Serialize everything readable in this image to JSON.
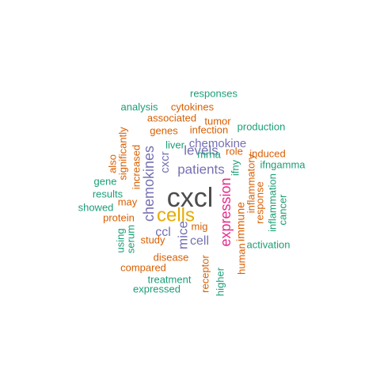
{
  "palette": {
    "dark_gray": "#4d4d4d",
    "magenta": "#e7298a",
    "gold": "#e6ab02",
    "purple": "#7570b3",
    "orange": "#d95f02",
    "teal": "#1b9e77"
  },
  "words": [
    {
      "text": "cxcl",
      "color": "dark_gray"
    },
    {
      "text": "expression",
      "color": "magenta"
    },
    {
      "text": "cells",
      "color": "gold"
    },
    {
      "text": "chemokines",
      "color": "purple"
    },
    {
      "text": "patients",
      "color": "purple"
    },
    {
      "text": "levels",
      "color": "purple"
    },
    {
      "text": "chemokine",
      "color": "purple"
    },
    {
      "text": "mice",
      "color": "purple"
    },
    {
      "text": "cell",
      "color": "purple"
    },
    {
      "text": "ccl",
      "color": "purple"
    },
    {
      "text": "cxcr",
      "color": "purple"
    },
    {
      "text": "immune",
      "color": "orange"
    },
    {
      "text": "inflammatory",
      "color": "orange"
    },
    {
      "text": "response",
      "color": "orange"
    },
    {
      "text": "increased",
      "color": "orange"
    },
    {
      "text": "significantly",
      "color": "orange"
    },
    {
      "text": "also",
      "color": "orange"
    },
    {
      "text": "may",
      "color": "orange"
    },
    {
      "text": "protein",
      "color": "orange"
    },
    {
      "text": "study",
      "color": "orange"
    },
    {
      "text": "disease",
      "color": "orange"
    },
    {
      "text": "compared",
      "color": "orange"
    },
    {
      "text": "mig",
      "color": "orange"
    },
    {
      "text": "human",
      "color": "orange"
    },
    {
      "text": "receptor",
      "color": "orange"
    },
    {
      "text": "induced",
      "color": "orange"
    },
    {
      "text": "role",
      "color": "orange"
    },
    {
      "text": "infection",
      "color": "orange"
    },
    {
      "text": "genes",
      "color": "orange"
    },
    {
      "text": "tumor",
      "color": "orange"
    },
    {
      "text": "associated",
      "color": "orange"
    },
    {
      "text": "cytokines",
      "color": "orange"
    },
    {
      "text": "responses",
      "color": "teal"
    },
    {
      "text": "analysis",
      "color": "teal"
    },
    {
      "text": "production",
      "color": "teal"
    },
    {
      "text": "liver",
      "color": "teal"
    },
    {
      "text": "mrna",
      "color": "teal"
    },
    {
      "text": "ifny",
      "color": "teal"
    },
    {
      "text": "ifngamma",
      "color": "teal"
    },
    {
      "text": "gene",
      "color": "teal"
    },
    {
      "text": "results",
      "color": "teal"
    },
    {
      "text": "showed",
      "color": "teal"
    },
    {
      "text": "using",
      "color": "teal"
    },
    {
      "text": "serum",
      "color": "teal"
    },
    {
      "text": "inflammation",
      "color": "teal"
    },
    {
      "text": "cancer",
      "color": "teal"
    },
    {
      "text": "activation",
      "color": "teal"
    },
    {
      "text": "treatment",
      "color": "teal"
    },
    {
      "text": "expressed",
      "color": "teal"
    },
    {
      "text": "higher",
      "color": "teal"
    }
  ]
}
